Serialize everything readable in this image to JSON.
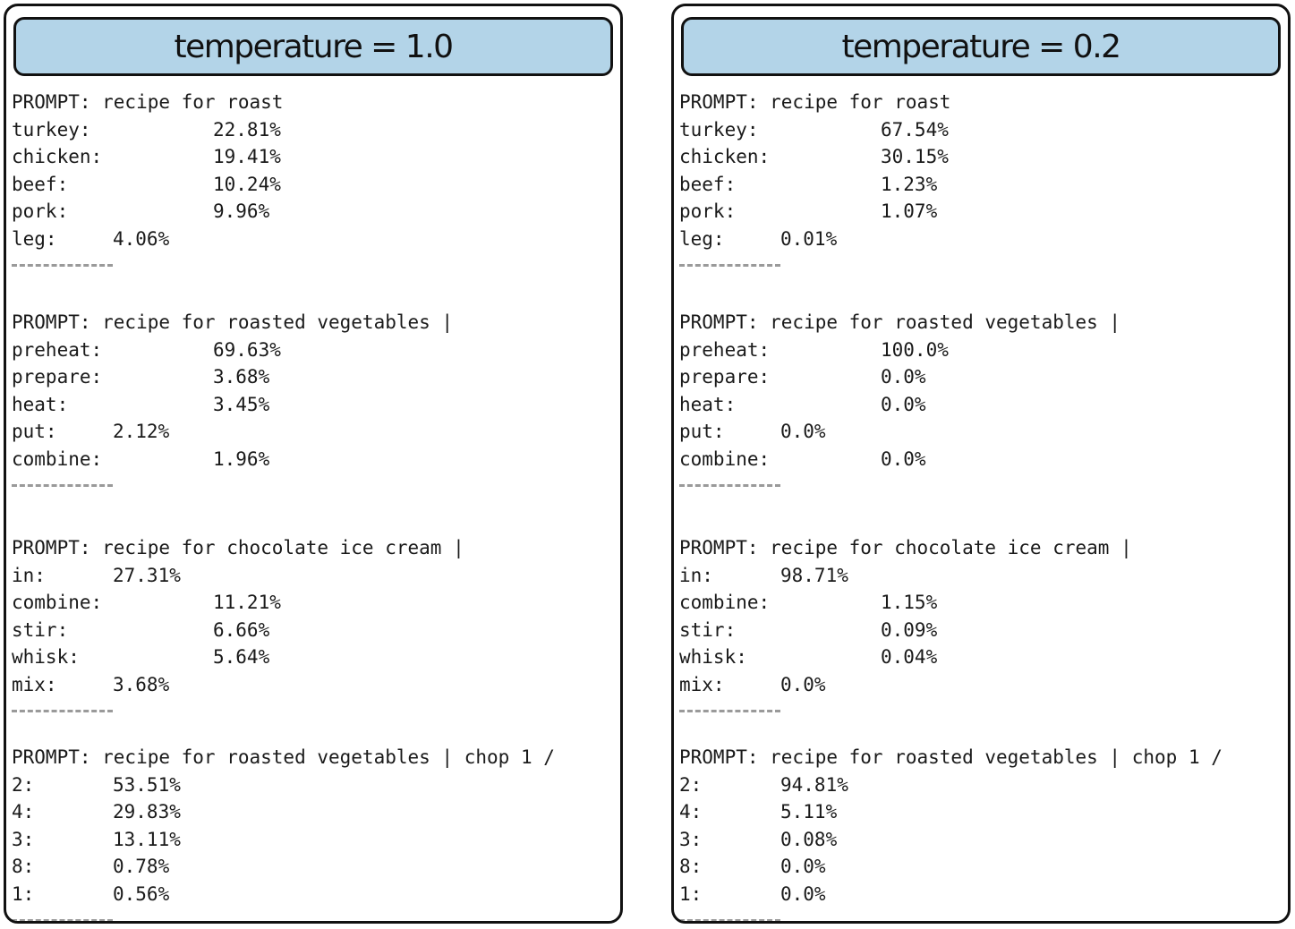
{
  "panels": [
    {
      "title": "temperature = 1.0",
      "blocks": [
        {
          "prompt": "PROMPT: recipe for roast",
          "rows": [
            {
              "label": "turkey:",
              "value": "22.81%"
            },
            {
              "label": "chicken:",
              "value": "19.41%"
            },
            {
              "label": "beef:",
              "value": "10.24%"
            },
            {
              "label": "pork:",
              "value": "9.96%"
            },
            {
              "label": "leg:",
              "value": "4.06%"
            }
          ]
        },
        {
          "prompt": "PROMPT: recipe for roasted vegetables |",
          "rows": [
            {
              "label": "preheat:",
              "value": "69.63%"
            },
            {
              "label": "prepare:",
              "value": "3.68%"
            },
            {
              "label": "heat:",
              "value": "3.45%"
            },
            {
              "label": "put:",
              "value": "2.12%"
            },
            {
              "label": "combine:",
              "value": "1.96%"
            }
          ]
        },
        {
          "prompt": "PROMPT: recipe for chocolate ice cream |",
          "rows": [
            {
              "label": "in:",
              "value": "27.31%"
            },
            {
              "label": "combine:",
              "value": "11.21%"
            },
            {
              "label": "stir:",
              "value": "6.66%"
            },
            {
              "label": "whisk:",
              "value": "5.64%"
            },
            {
              "label": "mix:",
              "value": "3.68%"
            }
          ]
        },
        {
          "prompt": "PROMPT: recipe for roasted vegetables | chop 1 /",
          "rows": [
            {
              "label": "2:",
              "value": "53.51%"
            },
            {
              "label": "4:",
              "value": "29.83%"
            },
            {
              "label": "3:",
              "value": "13.11%"
            },
            {
              "label": "8:",
              "value": "0.78%"
            },
            {
              "label": "1:",
              "value": "0.56%"
            }
          ]
        }
      ]
    },
    {
      "title": "temperature = 0.2",
      "blocks": [
        {
          "prompt": "PROMPT: recipe for roast",
          "rows": [
            {
              "label": "turkey:",
              "value": "67.54%"
            },
            {
              "label": "chicken:",
              "value": "30.15%"
            },
            {
              "label": "beef:",
              "value": "1.23%"
            },
            {
              "label": "pork:",
              "value": "1.07%"
            },
            {
              "label": "leg:",
              "value": "0.01%"
            }
          ]
        },
        {
          "prompt": "PROMPT: recipe for roasted vegetables |",
          "rows": [
            {
              "label": "preheat:",
              "value": "100.0%"
            },
            {
              "label": "prepare:",
              "value": "0.0%"
            },
            {
              "label": "heat:",
              "value": "0.0%"
            },
            {
              "label": "put:",
              "value": "0.0%"
            },
            {
              "label": "combine:",
              "value": "0.0%"
            }
          ]
        },
        {
          "prompt": "PROMPT: recipe for chocolate ice cream |",
          "rows": [
            {
              "label": "in:",
              "value": "98.71%"
            },
            {
              "label": "combine:",
              "value": "1.15%"
            },
            {
              "label": "stir:",
              "value": "0.09%"
            },
            {
              "label": "whisk:",
              "value": "0.04%"
            },
            {
              "label": "mix:",
              "value": "0.0%"
            }
          ]
        },
        {
          "prompt": "PROMPT: recipe for roasted vegetables | chop 1 /",
          "rows": [
            {
              "label": "2:",
              "value": "94.81%"
            },
            {
              "label": "4:",
              "value": "5.11%"
            },
            {
              "label": "3:",
              "value": "0.08%"
            },
            {
              "label": "8:",
              "value": "0.0%"
            },
            {
              "label": "1:",
              "value": "0.0%"
            }
          ]
        }
      ]
    }
  ]
}
